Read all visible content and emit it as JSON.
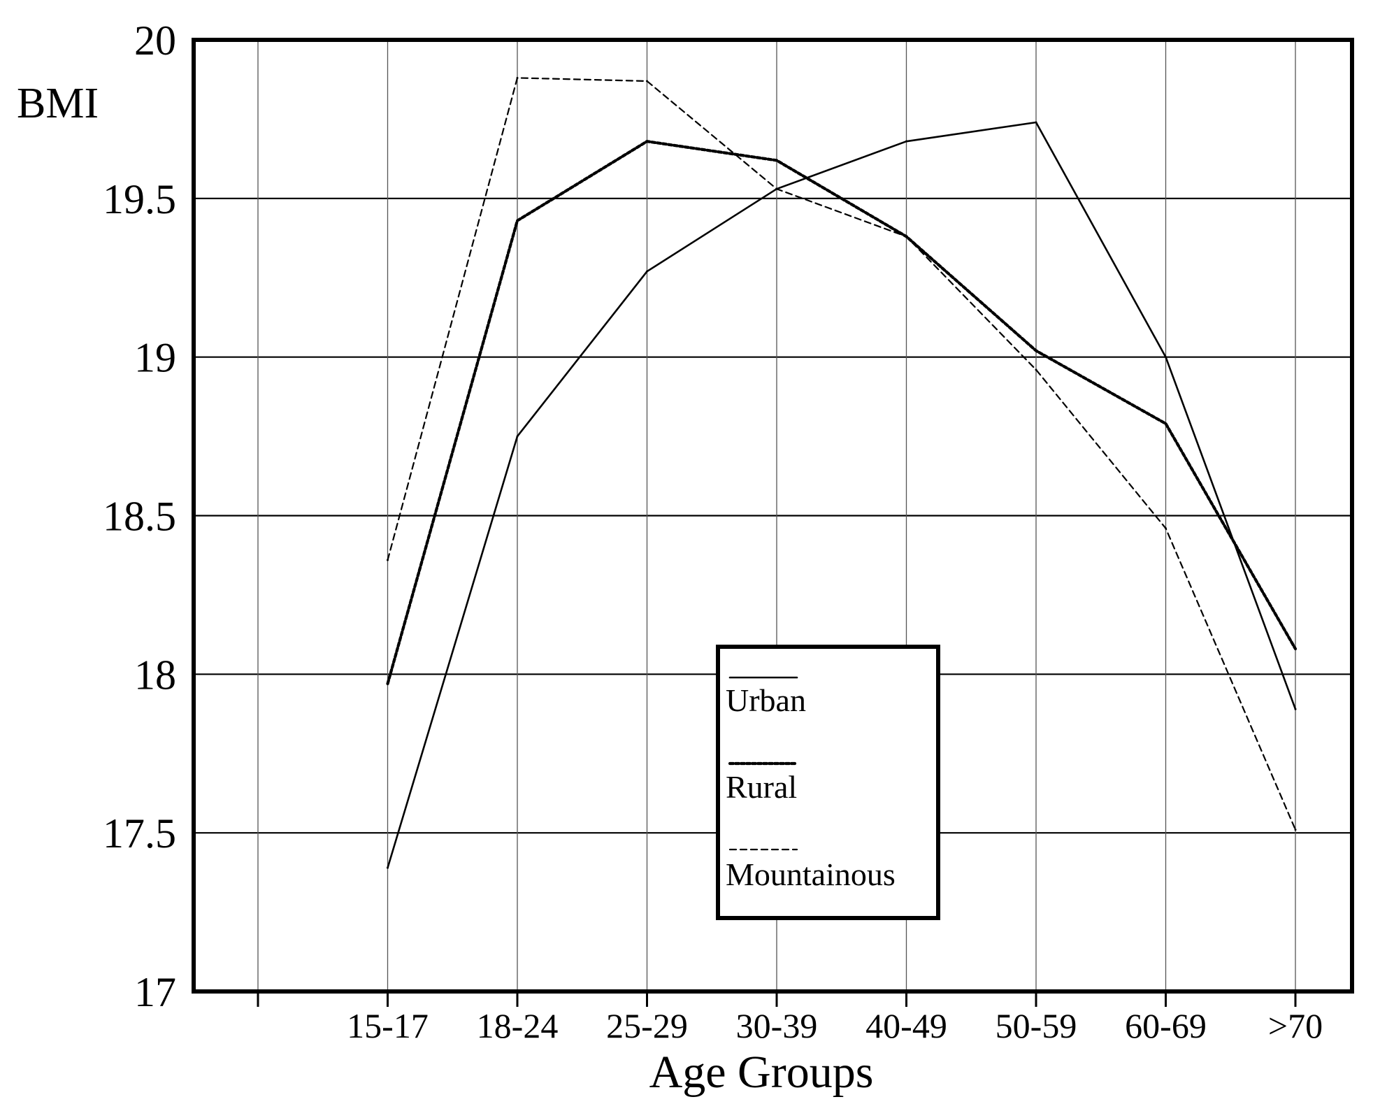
{
  "chart_data": {
    "type": "line",
    "title": "",
    "xlabel": "Age Groups",
    "ylabel": "BMI",
    "categories": [
      "15-17",
      "18-24",
      "25-29",
      "30-39",
      "40-49",
      "50-59",
      "60-69",
      ">70"
    ],
    "ylim": [
      17,
      20
    ],
    "yticks": [
      17,
      17.5,
      18,
      18.5,
      19,
      19.5,
      20
    ],
    "ytick_labels": [
      "17",
      "17.5",
      "18",
      "18.5",
      "19",
      "19.5",
      "20"
    ],
    "grid": true,
    "legend_position": "center-bottom",
    "series": [
      {
        "name": "Urban",
        "style": "solid",
        "values": [
          17.39,
          18.75,
          19.27,
          19.53,
          19.68,
          19.74,
          19.0,
          17.89
        ]
      },
      {
        "name": "Rural",
        "style": "dotted",
        "values": [
          17.97,
          19.43,
          19.68,
          19.62,
          19.38,
          19.02,
          18.79,
          18.08
        ]
      },
      {
        "name": "Mountainous",
        "style": "dashed",
        "values": [
          18.36,
          19.88,
          19.87,
          19.53,
          19.38,
          18.96,
          18.46,
          17.51
        ]
      }
    ]
  }
}
